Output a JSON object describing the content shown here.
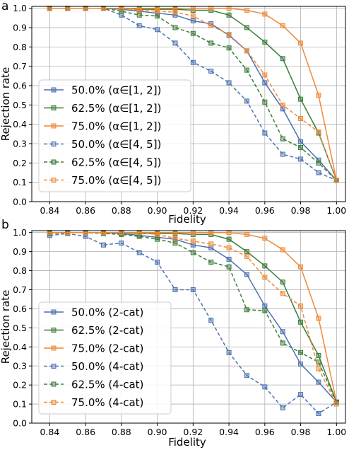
{
  "chart_data": [
    {
      "panel_label": "a",
      "type": "line",
      "xlabel": "Fidelity",
      "ylabel": "Rejection rate",
      "xlim": [
        0.83,
        1.005
      ],
      "ylim": [
        0.0,
        1.01
      ],
      "xticks": [
        "0.84",
        "0.86",
        "0.88",
        "0.90",
        "0.92",
        "0.94",
        "0.96",
        "0.98",
        "1.00"
      ],
      "yticks": [
        "0.0",
        "0.1",
        "0.2",
        "0.3",
        "0.4",
        "0.5",
        "0.6",
        "0.7",
        "0.8",
        "0.9",
        "1.0"
      ],
      "legend_position": "lower-left",
      "x": [
        0.84,
        0.85,
        0.86,
        0.87,
        0.88,
        0.89,
        0.9,
        0.91,
        0.92,
        0.93,
        0.94,
        0.95,
        0.96,
        0.97,
        0.98,
        0.99,
        1.0
      ],
      "series": [
        {
          "name": "50.0% (α∈[1, 2])",
          "color": "#4c72b0",
          "dashed": false,
          "values": [
            1.0,
            1.0,
            1.0,
            1.0,
            0.995,
            0.985,
            0.975,
            0.965,
            0.935,
            0.92,
            0.86,
            0.78,
            0.615,
            0.48,
            0.31,
            0.215,
            0.11
          ]
        },
        {
          "name": "62.5% (α∈[1, 2])",
          "color": "#3a7d3a",
          "dashed": false,
          "values": [
            1.0,
            1.0,
            1.0,
            1.0,
            1.0,
            0.995,
            0.995,
            0.995,
            0.99,
            0.99,
            0.965,
            0.9,
            0.825,
            0.74,
            0.53,
            0.355,
            0.11
          ]
        },
        {
          "name": "75.0% (α∈[1, 2])",
          "color": "#ee8a38",
          "dashed": false,
          "values": [
            1.0,
            1.0,
            1.0,
            1.0,
            1.0,
            1.0,
            1.0,
            1.0,
            1.0,
            1.0,
            1.0,
            0.99,
            0.97,
            0.91,
            0.82,
            0.55,
            0.11
          ]
        },
        {
          "name": "50.0% (α∈[4, 5])",
          "color": "#4c72b0",
          "dashed": true,
          "values": [
            1.0,
            1.0,
            1.0,
            1.0,
            0.965,
            0.91,
            0.89,
            0.82,
            0.72,
            0.675,
            0.615,
            0.52,
            0.355,
            0.245,
            0.22,
            0.15,
            0.11
          ]
        },
        {
          "name": "62.5% (α∈[4, 5])",
          "color": "#3a7d3a",
          "dashed": true,
          "values": [
            1.0,
            1.0,
            1.0,
            1.0,
            0.985,
            0.965,
            0.96,
            0.9,
            0.87,
            0.82,
            0.795,
            0.68,
            0.515,
            0.325,
            0.28,
            0.2,
            0.11
          ]
        },
        {
          "name": "75.0% (α∈[4, 5])",
          "color": "#ee8a38",
          "dashed": true,
          "values": [
            1.0,
            1.0,
            1.0,
            1.0,
            1.0,
            0.99,
            0.985,
            0.98,
            0.96,
            0.91,
            0.865,
            0.78,
            0.655,
            0.5,
            0.43,
            0.36,
            0.11
          ]
        }
      ]
    },
    {
      "panel_label": "b",
      "type": "line",
      "xlabel": "Fidelity",
      "ylabel": "Rejection rate",
      "xlim": [
        0.83,
        1.005
      ],
      "ylim": [
        0.0,
        1.01
      ],
      "xticks": [
        "0.84",
        "0.86",
        "0.88",
        "0.90",
        "0.92",
        "0.94",
        "0.96",
        "0.98",
        "1.00"
      ],
      "yticks": [
        "0.0",
        "0.1",
        "0.2",
        "0.3",
        "0.4",
        "0.5",
        "0.6",
        "0.7",
        "0.8",
        "0.9",
        "1.0"
      ],
      "legend_position": "lower-left",
      "x": [
        0.84,
        0.85,
        0.86,
        0.87,
        0.88,
        0.89,
        0.9,
        0.91,
        0.92,
        0.93,
        0.94,
        0.95,
        0.96,
        0.97,
        0.98,
        0.99,
        1.0
      ],
      "series": [
        {
          "name": "50.0% (2-cat)",
          "color": "#4c72b0",
          "dashed": false,
          "values": [
            1.0,
            1.0,
            1.0,
            1.0,
            0.995,
            0.985,
            0.975,
            0.965,
            0.935,
            0.92,
            0.86,
            0.78,
            0.615,
            0.48,
            0.31,
            0.215,
            0.11
          ]
        },
        {
          "name": "62.5% (2-cat)",
          "color": "#3a7d3a",
          "dashed": false,
          "values": [
            1.0,
            1.0,
            1.0,
            1.0,
            1.0,
            0.995,
            0.995,
            0.995,
            0.99,
            0.99,
            0.965,
            0.9,
            0.825,
            0.74,
            0.53,
            0.355,
            0.11
          ]
        },
        {
          "name": "75.0% (2-cat)",
          "color": "#ee8a38",
          "dashed": false,
          "values": [
            1.0,
            1.0,
            1.0,
            1.0,
            1.0,
            1.0,
            1.0,
            1.0,
            1.0,
            1.0,
            1.0,
            0.99,
            0.97,
            0.91,
            0.82,
            0.55,
            0.11
          ]
        },
        {
          "name": "50.0% (4-cat)",
          "color": "#4c72b0",
          "dashed": true,
          "values": [
            0.985,
            0.995,
            0.98,
            0.935,
            0.945,
            0.895,
            0.845,
            0.7,
            0.7,
            0.54,
            0.37,
            0.25,
            0.19,
            0.08,
            0.15,
            0.05,
            0.11
          ]
        },
        {
          "name": "62.5% (4-cat)",
          "color": "#3a7d3a",
          "dashed": true,
          "values": [
            0.995,
            1.0,
            1.0,
            0.995,
            0.99,
            0.98,
            0.965,
            0.945,
            0.895,
            0.845,
            0.82,
            0.595,
            0.59,
            0.42,
            0.37,
            0.32,
            0.11
          ]
        },
        {
          "name": "75.0% (4-cat)",
          "color": "#ee8a38",
          "dashed": true,
          "values": [
            1.0,
            1.0,
            1.0,
            1.0,
            1.0,
            1.0,
            0.99,
            0.97,
            0.955,
            0.94,
            0.92,
            0.875,
            0.765,
            0.68,
            0.615,
            0.285,
            0.1
          ]
        }
      ]
    }
  ]
}
